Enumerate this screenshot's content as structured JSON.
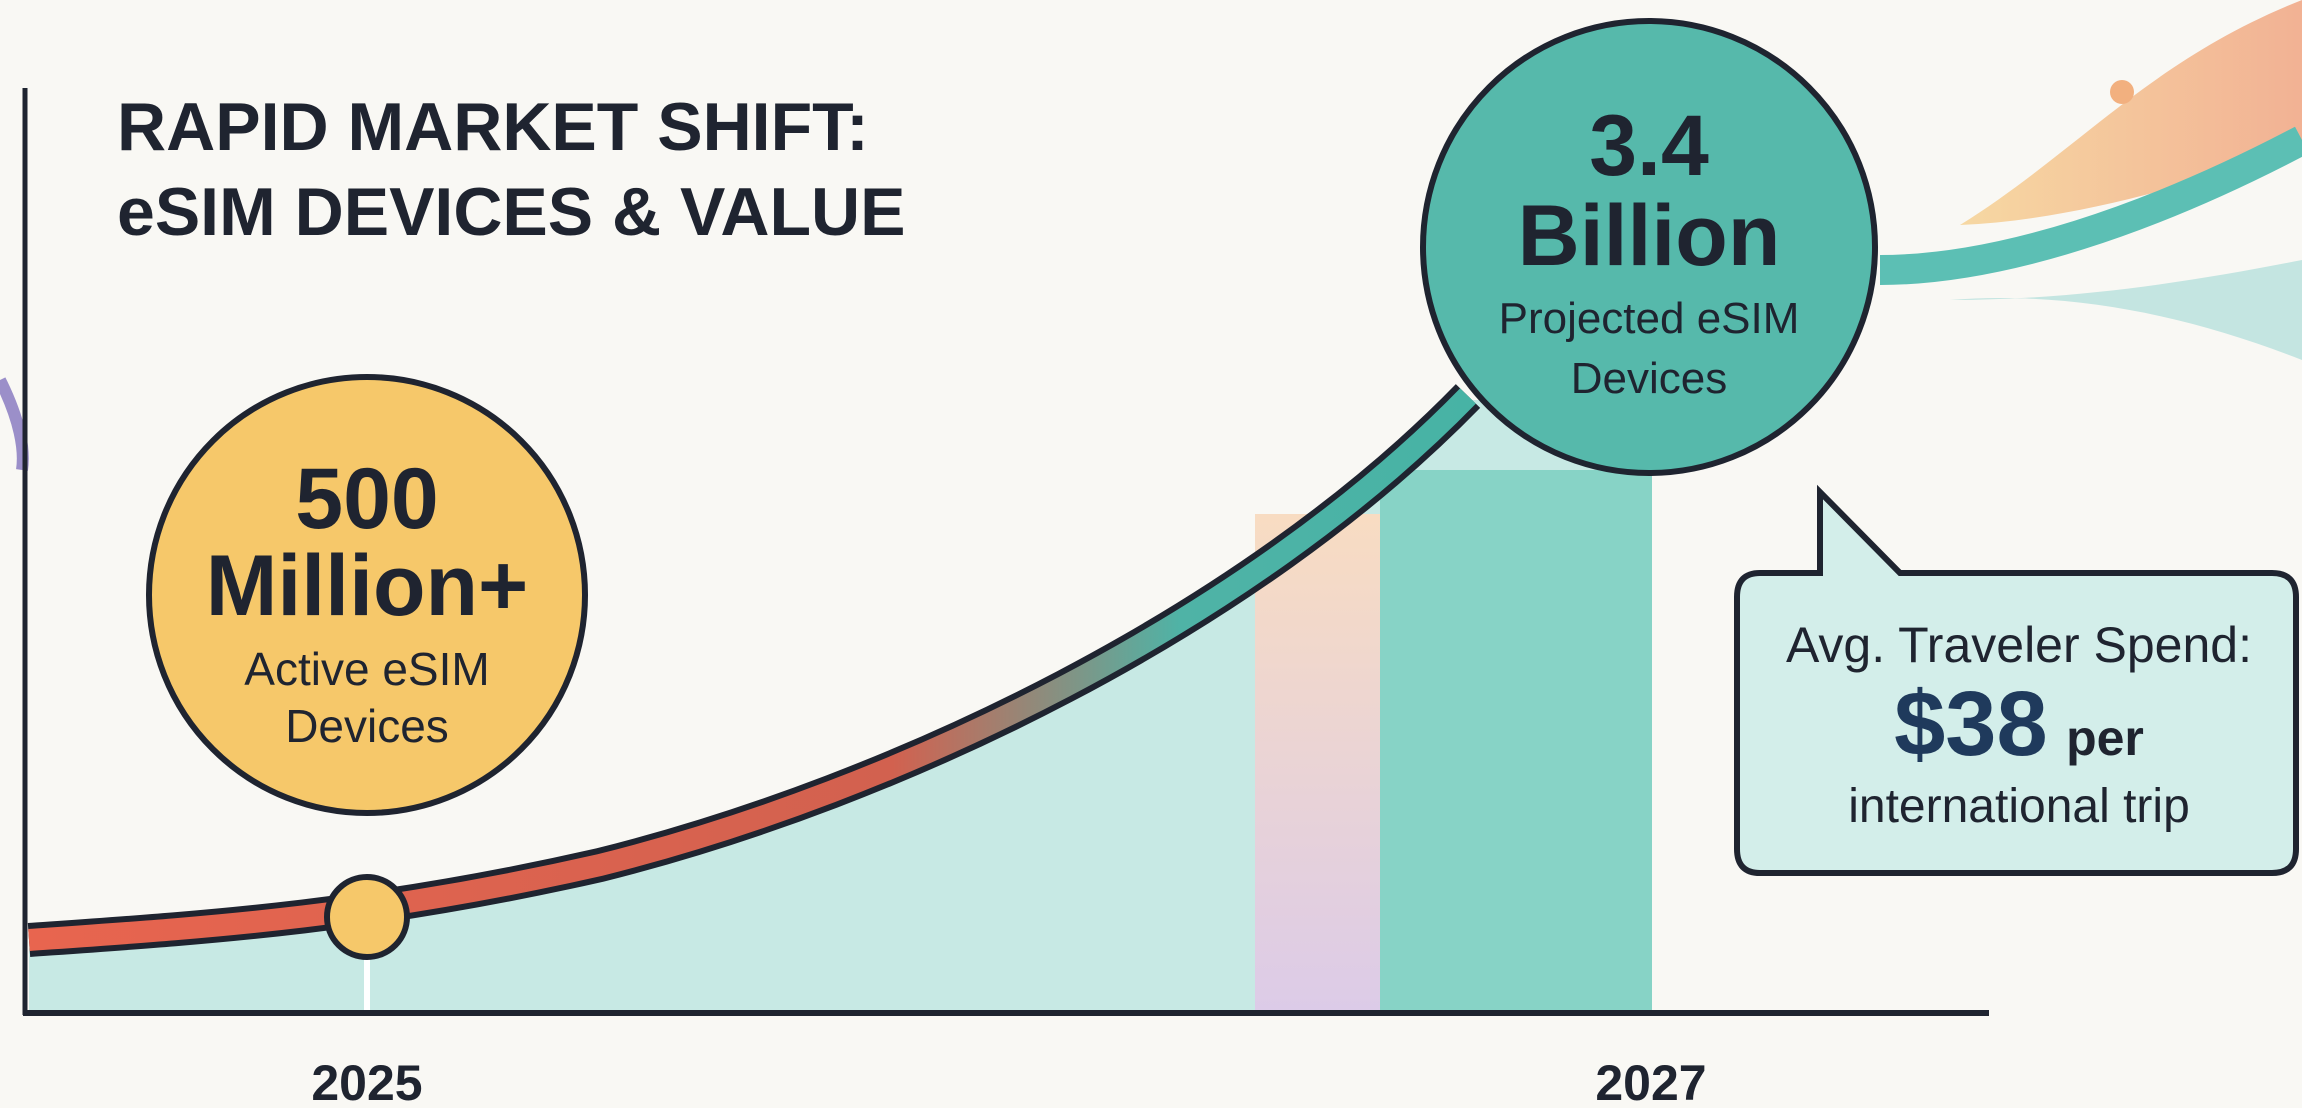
{
  "title": {
    "line1": "RAPID MARKET SHIFT:",
    "line2": "eSIM DEVICES & VALUE"
  },
  "callout_2025": {
    "number": "500",
    "unit": "Million+",
    "desc1": "Active eSIM",
    "desc2": "Devices"
  },
  "callout_2027": {
    "number": "3.4",
    "unit": "Billion",
    "desc1": "Projected eSIM",
    "desc2": "Devices"
  },
  "spend_box": {
    "heading": "Avg. Traveler Spend:",
    "amount": "$38",
    "amount_suffix": "per",
    "detail": "international trip"
  },
  "x_labels": [
    "2025",
    "2027"
  ]
}
